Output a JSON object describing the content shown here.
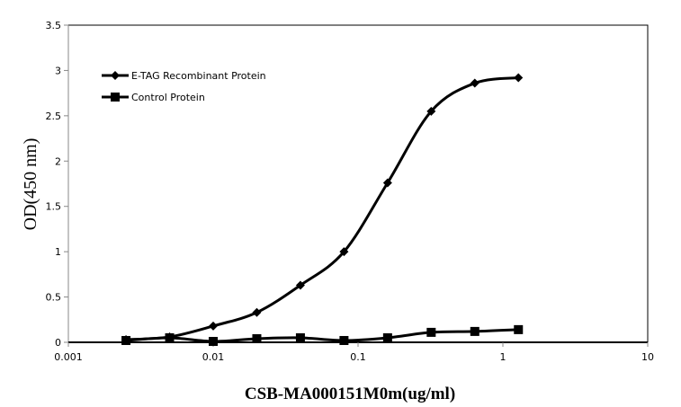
{
  "chart_data": {
    "type": "line",
    "title": "",
    "xlabel": "CSB-MA000151M0m(ug/ml)",
    "ylabel": "OD(450 nm)",
    "xscale": "log",
    "xlim": [
      0.001,
      10
    ],
    "ylim": [
      0,
      3.5
    ],
    "xticks": [
      "0.001",
      "0.01",
      "0.1",
      "1",
      "10"
    ],
    "xtick_values": [
      0.001,
      0.01,
      0.1,
      1,
      10
    ],
    "yticks": [
      "0",
      "0.5",
      "1",
      "1.5",
      "2",
      "2.5",
      "3",
      "3.5"
    ],
    "ytick_values": [
      0,
      0.5,
      1,
      1.5,
      2,
      2.5,
      3,
      3.5
    ],
    "grid": false,
    "legend_position": "top-left",
    "x": [
      0.0025,
      0.005,
      0.01,
      0.02,
      0.04,
      0.08,
      0.16,
      0.32,
      0.64,
      1.28
    ],
    "series": [
      {
        "name": "E-TAG Recombinant Protein",
        "marker": "diamond",
        "color": "#000000",
        "values": [
          0.03,
          0.06,
          0.18,
          0.33,
          0.63,
          1.0,
          1.76,
          2.55,
          2.86,
          2.92
        ]
      },
      {
        "name": "Control Protein",
        "marker": "square",
        "color": "#000000",
        "values": [
          0.02,
          0.05,
          0.01,
          0.04,
          0.05,
          0.02,
          0.05,
          0.11,
          0.12,
          0.14
        ]
      }
    ]
  }
}
